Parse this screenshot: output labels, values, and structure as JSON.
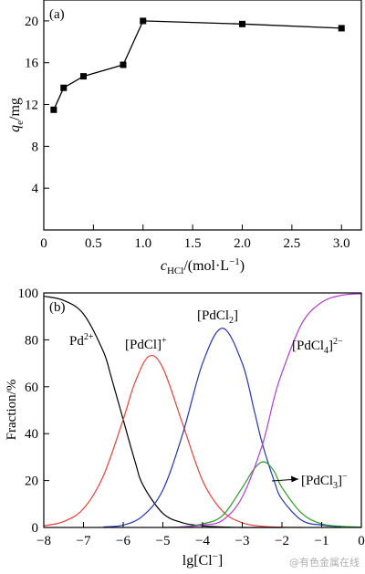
{
  "chart_data": [
    {
      "type": "line",
      "panel_label": "(a)",
      "ylabel_main": "q",
      "ylabel_sub": "e",
      "ylabel_unit": "/mg",
      "xlabel_main": "c",
      "xlabel_sub": "HCl",
      "xlabel_unit": "/(mol·L",
      "xlabel_sup": "−1",
      "xlabel_close": ")",
      "xlim": [
        0,
        3.2
      ],
      "ylim": [
        0,
        22
      ],
      "xticks": [
        0,
        0.5,
        1.0,
        1.5,
        2.0,
        2.5,
        3.0
      ],
      "xtick_labels": [
        "0",
        "0.5",
        "1.0",
        "1.5",
        "2.0",
        "2.5",
        "3.0"
      ],
      "yticks": [
        4,
        8,
        12,
        16,
        20
      ],
      "ytick_labels": [
        "4",
        "8",
        "12",
        "16",
        "20"
      ],
      "series": [
        {
          "color": "#000000",
          "marker": "square",
          "x": [
            0.1,
            0.2,
            0.4,
            0.8,
            1.0,
            2.0,
            3.0
          ],
          "y": [
            11.5,
            13.6,
            14.7,
            15.8,
            20.0,
            19.7,
            19.3
          ]
        }
      ]
    },
    {
      "type": "line",
      "panel_label": "(b)",
      "ylabel": "Fraction/%",
      "xlabel_main": "lg[Cl",
      "xlabel_sup": "−",
      "xlabel_close": "]",
      "xlim": [
        -8,
        0
      ],
      "ylim": [
        0,
        100
      ],
      "xticks": [
        -8,
        -7,
        -6,
        -5,
        -4,
        -3,
        -2,
        -1,
        0
      ],
      "xtick_labels": [
        "−8",
        "−7",
        "−6",
        "−5",
        "−4",
        "−3",
        "−2",
        "−1",
        "0"
      ],
      "yticks": [
        0,
        20,
        40,
        60,
        80,
        100
      ],
      "ytick_labels": [
        "0",
        "20",
        "40",
        "60",
        "80",
        "100"
      ],
      "series": [
        {
          "name_main": "Pd",
          "name_sup": "2+",
          "color": "#000000",
          "x": [
            -8,
            -7.5,
            -7,
            -6.5,
            -6.3,
            -6,
            -5.7,
            -5.5,
            -5,
            -4.5,
            -4,
            -3.5,
            -3,
            -2.5,
            -2
          ],
          "y": [
            98.6,
            96.8,
            91,
            75,
            64,
            46,
            28,
            18,
            6,
            2,
            0.7,
            0.2,
            0,
            0,
            0
          ]
        },
        {
          "name_main": "[PdCl]",
          "name_sup": "+",
          "color": "#e8403a",
          "x": [
            -8,
            -7.5,
            -7,
            -6.5,
            -6,
            -5.7,
            -5.35,
            -5,
            -4.5,
            -4,
            -3.5,
            -3,
            -2.5,
            -2,
            -1.5
          ],
          "y": [
            0.7,
            2.5,
            8,
            22,
            46,
            62,
            73,
            68,
            44,
            20,
            7,
            2,
            0.5,
            0.1,
            0
          ]
        },
        {
          "name_main": "[PdCl",
          "name_sub": "2",
          "name_close": "]",
          "color": "#2536b8",
          "x": [
            -6.5,
            -6,
            -5.5,
            -5,
            -4.5,
            -4,
            -3.5,
            -3,
            -2.7,
            -2.5,
            -2.2,
            -2,
            -1.5,
            -1,
            -0.5
          ],
          "y": [
            0.2,
            1,
            5,
            16,
            40,
            70,
            85,
            70,
            50,
            36,
            20,
            12,
            3,
            1,
            0.2
          ]
        },
        {
          "name_main": "[PdCl",
          "name_sub": "3",
          "name_close": "]",
          "name_sup": "−",
          "color": "#2a9a2a",
          "x": [
            -5,
            -4.5,
            -4,
            -3.5,
            -3,
            -2.7,
            -2.45,
            -2.2,
            -2,
            -1.5,
            -1,
            -0.5,
            0
          ],
          "y": [
            0,
            0.3,
            1.5,
            5,
            17,
            25,
            28,
            24,
            17,
            6,
            1.5,
            0.5,
            0.1
          ]
        },
        {
          "name_main": "[PdCl",
          "name_sub": "4",
          "name_close": "]",
          "name_sup": "2−",
          "color": "#b23ad8",
          "x": [
            -5,
            -4.5,
            -4,
            -3.5,
            -3,
            -2.5,
            -2.2,
            -2,
            -1.5,
            -1,
            -0.5,
            0
          ],
          "y": [
            0,
            0.2,
            1,
            3,
            13,
            35,
            55,
            66,
            87,
            96,
            99,
            99.7
          ]
        }
      ]
    }
  ],
  "watermark": "@有色金属在线"
}
